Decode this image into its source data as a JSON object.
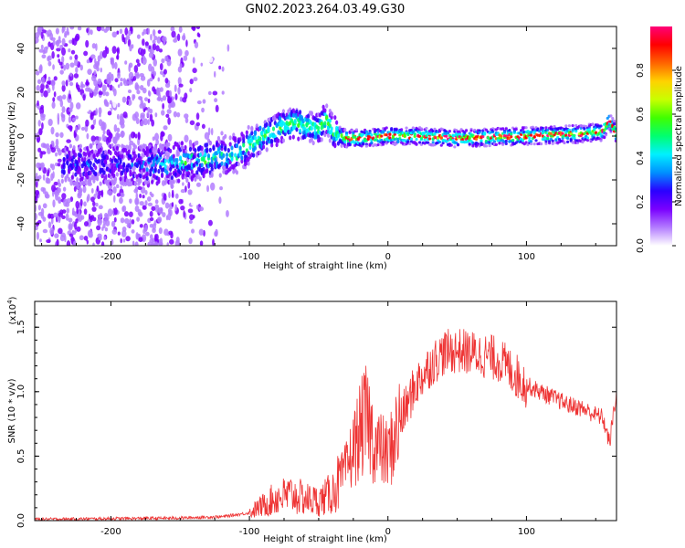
{
  "title": "GN02.2023.264.03.49.G30",
  "chart_data": [
    {
      "type": "heatmap",
      "xlabel": "Height of straight line (km)",
      "ylabel": "Frequency (Hz)",
      "xlim": [
        -255,
        165
      ],
      "ylim": [
        -50,
        50
      ],
      "xticks": [
        -200,
        -100,
        0,
        100
      ],
      "yticks": [
        -40,
        -20,
        0,
        20,
        40
      ],
      "colorbar": {
        "label": "Normalized spectral amplitude",
        "range": [
          0,
          1
        ],
        "ticks": [
          "0.0",
          "0.2",
          "0.4",
          "0.6",
          "0.8"
        ],
        "colors": [
          "#ffffff",
          "#b37cff",
          "#7a00ff",
          "#2a00ff",
          "#0090ff",
          "#00f0ff",
          "#00ff70",
          "#40ff00",
          "#c8ff00",
          "#ffd200",
          "#ff6400",
          "#ff0000",
          "#ff0078"
        ]
      },
      "ridge": {
        "x": [
          -170,
          -150,
          -130,
          -110,
          -100,
          -90,
          -80,
          -70,
          -60,
          -50,
          -45,
          -40,
          -35,
          -30,
          -20,
          0,
          20,
          50,
          100,
          140,
          155,
          160,
          165
        ],
        "y": [
          -13,
          -12,
          -10,
          -8,
          -4,
          0,
          3,
          6,
          5,
          3,
          8,
          3,
          0,
          -1,
          -1,
          0,
          0,
          -1,
          0,
          1,
          2,
          7,
          1
        ]
      }
    },
    {
      "type": "line",
      "xlabel": "Height of straight line (km)",
      "ylabel": "SNR (10 * v/v)",
      "yscale_label": "(x10",
      "yscale_exp": "4",
      "xlim": [
        -255,
        165
      ],
      "ylim": [
        0,
        1.7
      ],
      "xticks": [
        -200,
        -100,
        0,
        100
      ],
      "yticks": [
        "0.0",
        "0.5",
        "1.0",
        "1.5"
      ],
      "series": [
        {
          "color": "#ee3333",
          "x": [
            -255,
            -200,
            -150,
            -120,
            -100,
            -90,
            -80,
            -70,
            -60,
            -50,
            -40,
            -30,
            -25,
            -20,
            -15,
            -10,
            0,
            10,
            20,
            30,
            40,
            50,
            60,
            70,
            80,
            90,
            100,
            110,
            120,
            130,
            140,
            150,
            155,
            160,
            165
          ],
          "y": [
            0.01,
            0.015,
            0.02,
            0.03,
            0.06,
            0.12,
            0.18,
            0.2,
            0.17,
            0.15,
            0.22,
            0.4,
            0.55,
            0.7,
            0.8,
            0.6,
            0.5,
            0.8,
            1.05,
            1.2,
            1.3,
            1.32,
            1.3,
            1.28,
            1.25,
            1.15,
            1.05,
            1.0,
            0.95,
            0.9,
            0.87,
            0.82,
            0.8,
            0.6,
            1.0
          ]
        }
      ]
    }
  ]
}
